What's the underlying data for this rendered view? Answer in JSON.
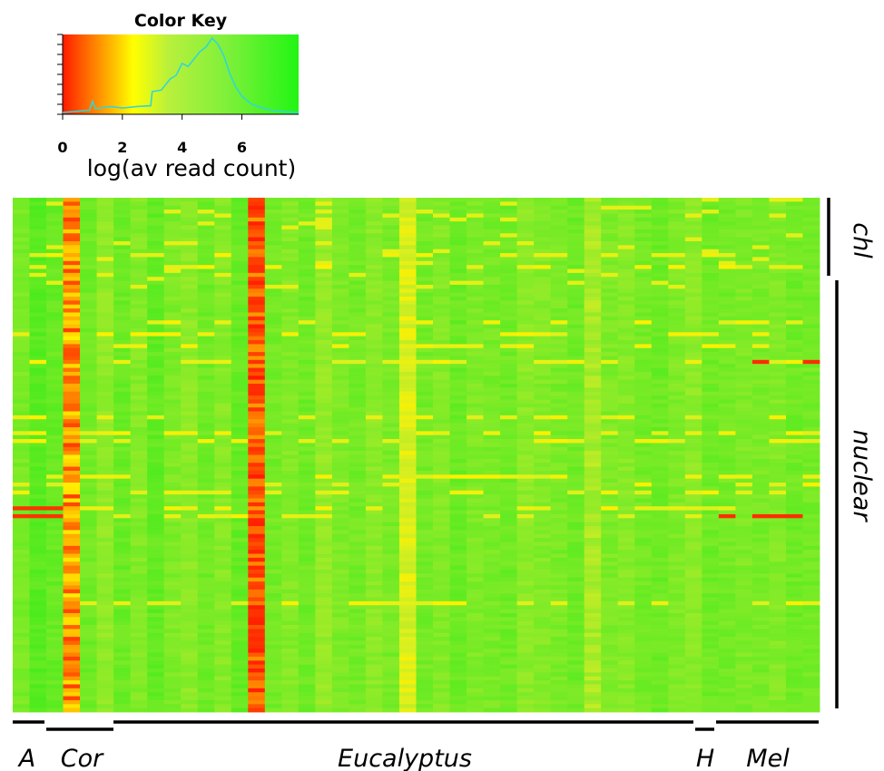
{
  "chart_data": {
    "type": "heatmap",
    "color_key": {
      "title": "Color Key",
      "xlabel": "log(av read count)",
      "ticks": [
        0,
        2,
        4,
        6
      ],
      "range": [
        0,
        7.9
      ],
      "colors": {
        "low": "#ff0000",
        "mid": "#ffff00",
        "high": "#00ff00",
        "histogram": "#33d6d6"
      },
      "histogram": [
        {
          "x": 0.0,
          "y": 0.0
        },
        {
          "x": 0.9,
          "y": 0.03
        },
        {
          "x": 1.0,
          "y": 0.15
        },
        {
          "x": 1.1,
          "y": 0.05
        },
        {
          "x": 1.6,
          "y": 0.08
        },
        {
          "x": 2.0,
          "y": 0.06
        },
        {
          "x": 2.5,
          "y": 0.08
        },
        {
          "x": 2.95,
          "y": 0.09
        },
        {
          "x": 3.0,
          "y": 0.28
        },
        {
          "x": 3.3,
          "y": 0.3
        },
        {
          "x": 3.6,
          "y": 0.45
        },
        {
          "x": 3.8,
          "y": 0.5
        },
        {
          "x": 4.0,
          "y": 0.66
        },
        {
          "x": 4.2,
          "y": 0.62
        },
        {
          "x": 4.4,
          "y": 0.72
        },
        {
          "x": 4.6,
          "y": 0.82
        },
        {
          "x": 4.8,
          "y": 0.88
        },
        {
          "x": 5.0,
          "y": 1.0
        },
        {
          "x": 5.2,
          "y": 0.92
        },
        {
          "x": 5.4,
          "y": 0.76
        },
        {
          "x": 5.6,
          "y": 0.52
        },
        {
          "x": 5.8,
          "y": 0.34
        },
        {
          "x": 6.0,
          "y": 0.22
        },
        {
          "x": 6.3,
          "y": 0.12
        },
        {
          "x": 6.6,
          "y": 0.07
        },
        {
          "x": 7.0,
          "y": 0.03
        },
        {
          "x": 7.4,
          "y": 0.01
        },
        {
          "x": 7.9,
          "y": 0.0
        }
      ]
    },
    "n_columns": 48,
    "n_rows": 130,
    "column_values": [
      5.4,
      6.1,
      5.8,
      1.6,
      5.6,
      4.9,
      5.7,
      5.2,
      5.9,
      5.3,
      5.0,
      5.6,
      5.1,
      5.8,
      0.9,
      5.5,
      5.2,
      5.6,
      4.8,
      5.3,
      5.5,
      5.0,
      5.4,
      3.2,
      5.5,
      5.2,
      5.7,
      5.3,
      5.4,
      5.6,
      5.0,
      5.2,
      5.4,
      5.6,
      4.3,
      5.3,
      5.1,
      5.5,
      5.7,
      5.3,
      5.0,
      5.6,
      5.5,
      5.3,
      5.4,
      5.2,
      5.6,
      5.5
    ],
    "row_groups": [
      {
        "label": "chl",
        "rows": [
          0,
          22
        ]
      },
      {
        "label": "nuclear",
        "rows": [
          23,
          129
        ]
      }
    ],
    "column_groups": [
      {
        "label": "A",
        "columns": [
          0,
          1
        ]
      },
      {
        "label": "Cor",
        "columns": [
          2,
          5
        ]
      },
      {
        "label": "Eucalyptus",
        "columns": [
          6,
          40
        ]
      },
      {
        "label": "H",
        "columns": [
          41,
          41
        ]
      },
      {
        "label": "Mel",
        "columns": [
          42,
          47
        ]
      }
    ]
  }
}
